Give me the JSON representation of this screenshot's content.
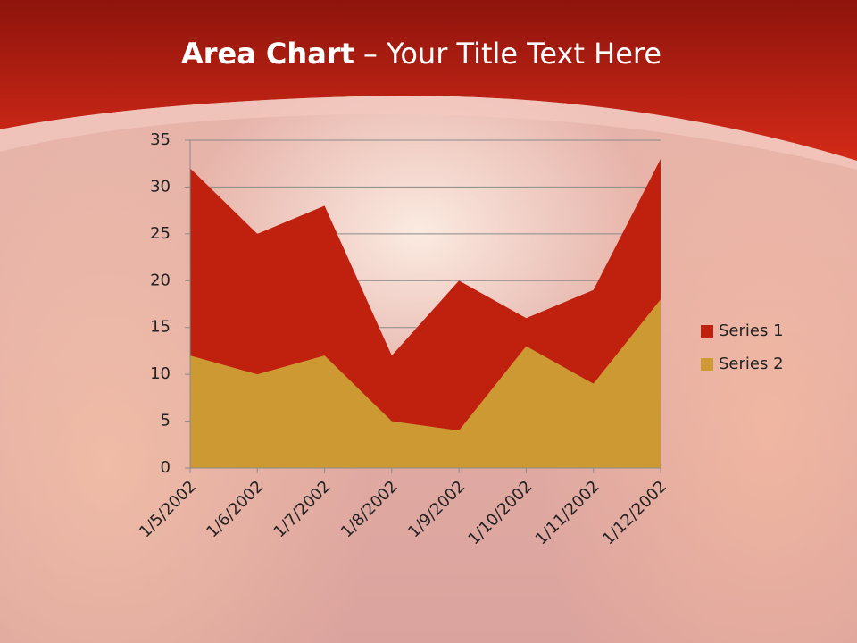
{
  "chart_data": {
    "type": "area",
    "title_parts": [
      "Area Chart",
      "– Your Title Text Here"
    ],
    "categories": [
      "1/5/2002",
      "1/6/2002",
      "1/7/2002",
      "1/8/2002",
      "1/9/2002",
      "1/10/2002",
      "1/11/2002",
      "1/12/2002"
    ],
    "series": [
      {
        "name": "Series 1",
        "color": "#c0200e",
        "values": [
          32,
          25,
          28,
          12,
          20,
          16,
          19,
          33
        ]
      },
      {
        "name": "Series 2",
        "color": "#cc9933",
        "values": [
          12,
          10,
          12,
          5,
          4,
          13,
          9,
          18
        ]
      }
    ],
    "ylim": [
      0,
      35
    ],
    "yticks": [
      0,
      5,
      10,
      15,
      20,
      25,
      30,
      35
    ],
    "grid": true,
    "legend": "right"
  }
}
